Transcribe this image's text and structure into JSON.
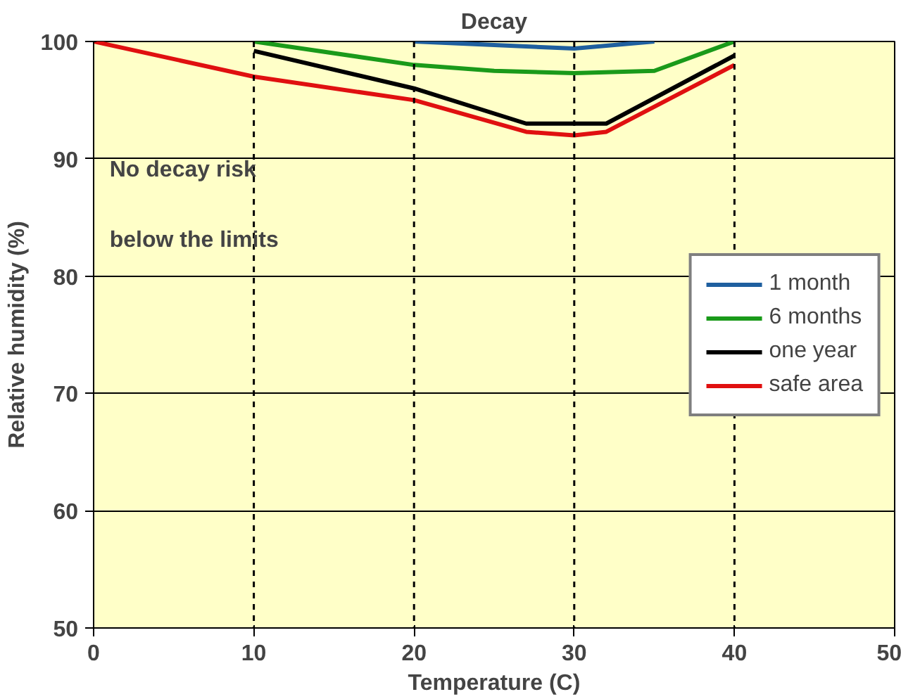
{
  "chart_data": {
    "type": "line",
    "title": "Decay",
    "xlabel": "Temperature (C)",
    "ylabel": "Relative humidity (%)",
    "xlim": [
      0,
      50
    ],
    "xticks": [
      0,
      10,
      20,
      30,
      40,
      50
    ],
    "ylim": [
      50,
      100
    ],
    "yticks": [
      50,
      60,
      70,
      80,
      90,
      100
    ],
    "grid": "y",
    "legend": "right",
    "line_style": "solid",
    "marker": "none",
    "series": [
      {
        "name": "1 month",
        "color": "#1f5f9f",
        "x": [
          20,
          25,
          30,
          35
        ],
        "values": [
          100,
          99.7,
          99.4,
          100
        ]
      },
      {
        "name": "6 months",
        "color": "#1a9a1a",
        "x": [
          10,
          20,
          25,
          30,
          35,
          40
        ],
        "values": [
          100,
          98,
          97.5,
          97.3,
          97.5,
          100
        ]
      },
      {
        "name": "one year",
        "color": "#000000",
        "x": [
          10,
          20,
          27,
          32,
          40
        ],
        "values": [
          99.2,
          96,
          93,
          93,
          98.8
        ]
      },
      {
        "name": "safe area",
        "color": "#e01010",
        "x": [
          0,
          10,
          20,
          27,
          30,
          32,
          40
        ],
        "values": [
          100,
          97,
          95,
          92.3,
          92,
          92.3,
          98
        ]
      }
    ],
    "ref_lines": [
      {
        "axis": "x",
        "value": 10,
        "line_style": "dashed",
        "color": "#000000"
      },
      {
        "axis": "x",
        "value": 20,
        "line_style": "dashed",
        "color": "#000000"
      },
      {
        "axis": "x",
        "value": 30,
        "line_style": "dashed",
        "color": "#000000"
      },
      {
        "axis": "x",
        "value": 40,
        "line_style": "dashed",
        "color": "#000000"
      }
    ],
    "annotations": [
      "No decay risk",
      "below the limits"
    ]
  }
}
